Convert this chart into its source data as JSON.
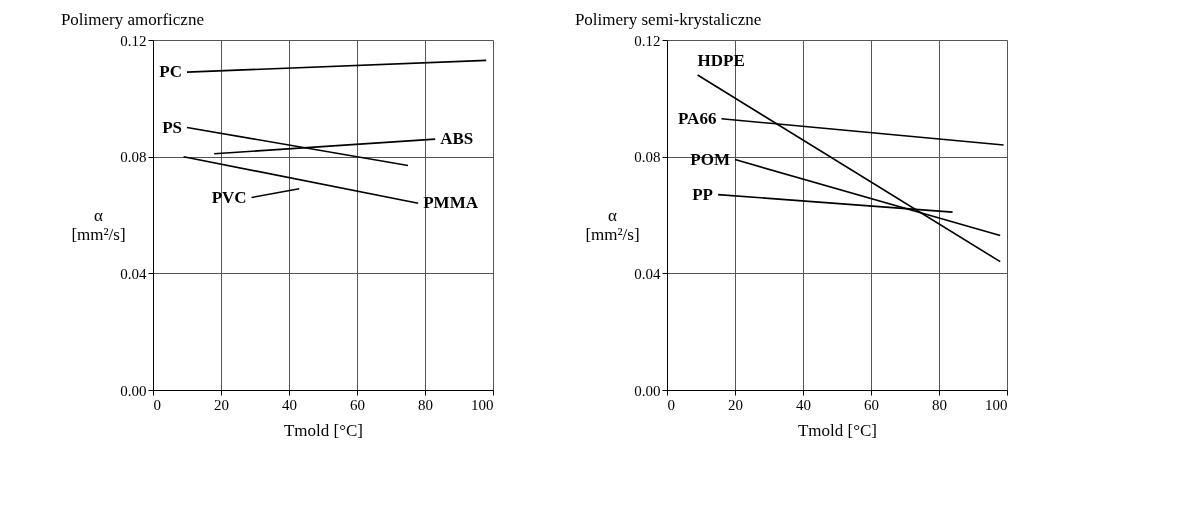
{
  "chart_data": [
    {
      "type": "line",
      "title": "Polimery amorficzne",
      "xlabel": "Tmold [°C]",
      "ylabel": "α [mm²/s]",
      "xlim": [
        0,
        100
      ],
      "xticks": [
        0,
        20,
        40,
        60,
        80,
        100
      ],
      "ylim": [
        0,
        0.12
      ],
      "yticks": [
        {
          "value": 0,
          "label": "0.00"
        },
        {
          "value": 0.04,
          "label": "0.04"
        },
        {
          "value": 0.08,
          "label": "0.08"
        },
        {
          "value": 0.12,
          "label": "0.12"
        }
      ],
      "grid": true,
      "legend": false,
      "line_style": "solid",
      "marker": "none",
      "series": [
        {
          "name": "PC",
          "color": "#000000",
          "x": [
            10,
            98
          ],
          "values": [
            0.109,
            0.113
          ]
        },
        {
          "name": "PS",
          "color": "#000000",
          "x": [
            10,
            75
          ],
          "values": [
            0.09,
            0.077
          ]
        },
        {
          "name": "PMMA",
          "color": "#000000",
          "x": [
            9,
            78
          ],
          "values": [
            0.08,
            0.064
          ]
        },
        {
          "name": "ABS",
          "color": "#000000",
          "x": [
            18,
            83
          ],
          "values": [
            0.081,
            0.086
          ]
        },
        {
          "name": "PVC",
          "color": "#000000",
          "x": [
            29,
            43
          ],
          "values": [
            0.066,
            0.069
          ]
        }
      ]
    },
    {
      "type": "line",
      "title": "Polimery semi-krystaliczne",
      "xlabel": "Tmold [°C]",
      "ylabel": "α [mm²/s]",
      "xlim": [
        0,
        100
      ],
      "xticks": [
        0,
        20,
        40,
        60,
        80,
        100
      ],
      "ylim": [
        0,
        0.12
      ],
      "yticks": [
        {
          "value": 0,
          "label": "0.00"
        },
        {
          "value": 0.04,
          "label": "0.04"
        },
        {
          "value": 0.08,
          "label": "0.08"
        },
        {
          "value": 0.12,
          "label": "0.12"
        }
      ],
      "grid": true,
      "legend": false,
      "line_style": "solid",
      "marker": "none",
      "series": [
        {
          "name": "HDPE",
          "color": "#000000",
          "x": [
            9,
            98
          ],
          "values": [
            0.108,
            0.044
          ]
        },
        {
          "name": "PA66",
          "color": "#000000",
          "x": [
            16,
            99
          ],
          "values": [
            0.093,
            0.084
          ]
        },
        {
          "name": "POM",
          "color": "#000000",
          "x": [
            20,
            98
          ],
          "values": [
            0.079,
            0.053
          ]
        },
        {
          "name": "PP",
          "color": "#000000",
          "x": [
            15,
            84
          ],
          "values": [
            0.067,
            0.061
          ]
        }
      ]
    }
  ]
}
